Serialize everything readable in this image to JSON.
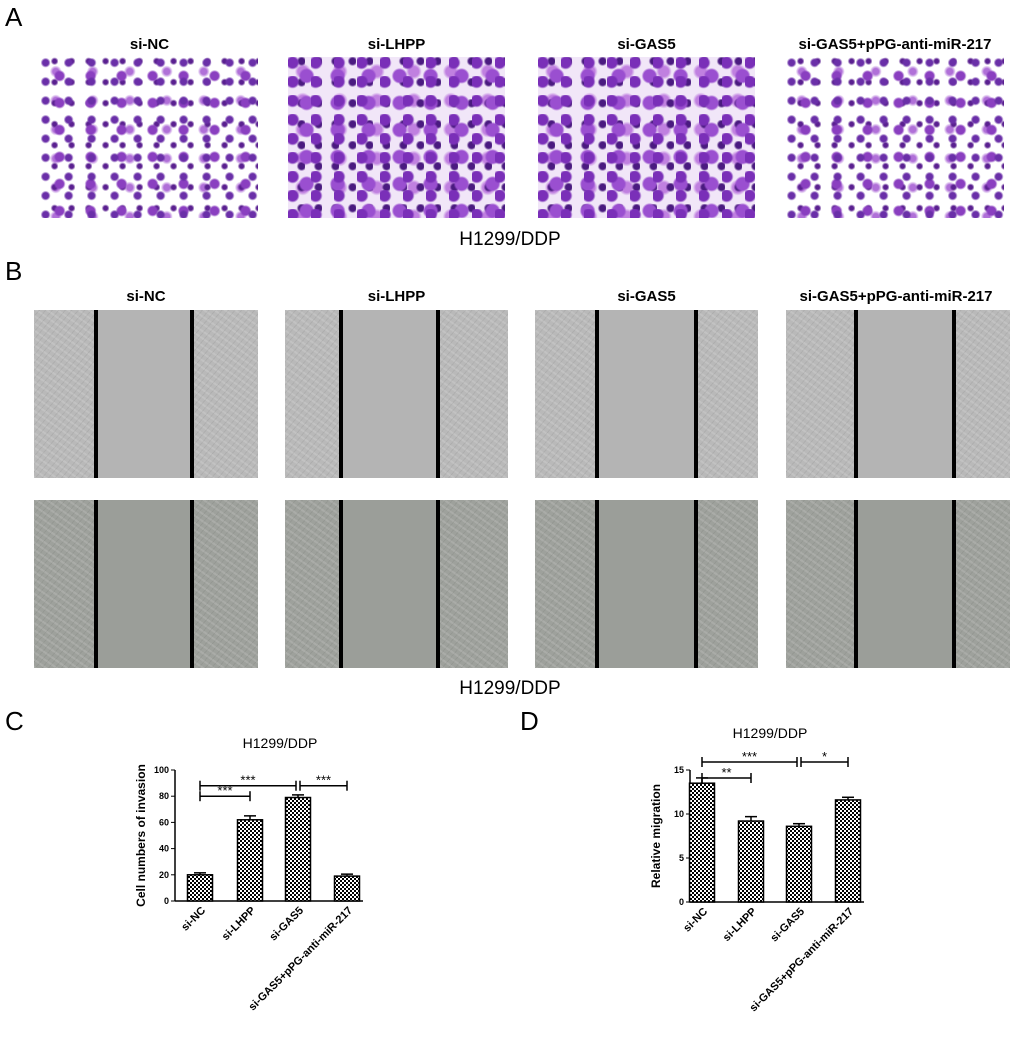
{
  "panels": {
    "a": {
      "label": "A",
      "groups": [
        "si-NC",
        "si-LHPP",
        "si-GAS5",
        "si-GAS5+pPG-anti-miR-217"
      ],
      "caption": "H1299/DDP"
    },
    "b": {
      "label": "B",
      "groups": [
        "si-NC",
        "si-LHPP",
        "si-GAS5",
        "si-GAS5+pPG-anti-miR-217"
      ],
      "caption": "H1299/DDP"
    },
    "c": {
      "label": "C"
    },
    "d": {
      "label": "D"
    }
  },
  "colors": {
    "invasion_stain": "#7a2fb8",
    "bar_pattern": "checkerboard black/white"
  },
  "chart_data": [
    {
      "type": "bar",
      "title": "H1299/DDP",
      "xlabel": "",
      "ylabel": "Cell numbers of invasion",
      "categories": [
        "si-NC",
        "si-LHPP",
        "si-GAS5",
        "si-GAS5+pPG-anti-miR-217"
      ],
      "values": [
        20,
        62,
        79,
        19
      ],
      "errors": [
        1.5,
        3,
        2,
        1.5
      ],
      "ylim": [
        0,
        100
      ],
      "yticks": [
        0,
        20,
        40,
        60,
        80,
        100
      ],
      "significance": [
        {
          "from": 0,
          "to": 1,
          "label": "***"
        },
        {
          "from": 0,
          "to": 2,
          "label": "***"
        },
        {
          "from": 2,
          "to": 3,
          "label": "***"
        }
      ]
    },
    {
      "type": "bar",
      "title": "H1299/DDP",
      "xlabel": "",
      "ylabel": "Relative migration",
      "categories": [
        "si-NC",
        "si-LHPP",
        "si-GAS5",
        "si-GAS5+pPG-anti-miR-217"
      ],
      "values": [
        13.5,
        9.2,
        8.6,
        11.6
      ],
      "errors": [
        0.6,
        0.5,
        0.3,
        0.3
      ],
      "ylim": [
        0,
        15
      ],
      "yticks": [
        0,
        5,
        10,
        15
      ],
      "significance": [
        {
          "from": 0,
          "to": 1,
          "label": "**"
        },
        {
          "from": 0,
          "to": 2,
          "label": "***"
        },
        {
          "from": 2,
          "to": 3,
          "label": "*"
        }
      ]
    }
  ]
}
